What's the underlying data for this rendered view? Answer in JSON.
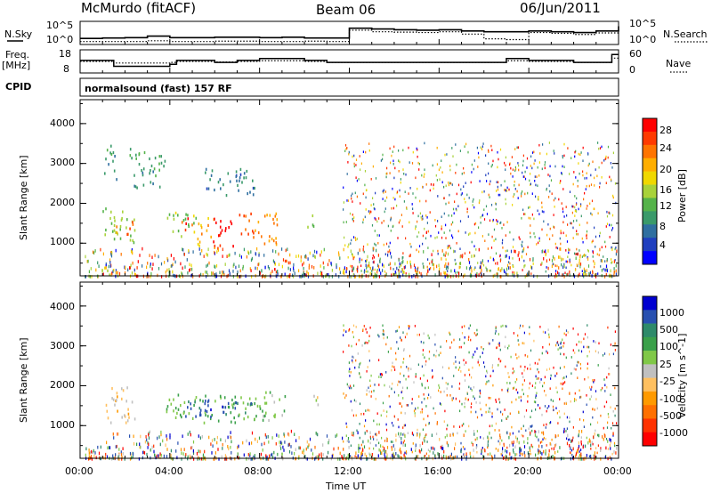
{
  "header": {
    "station": "McMurdo (fitACF)",
    "beam": "Beam 06",
    "date": "06/Jun/2011"
  },
  "noise_panel": {
    "left_label": "N.Sky",
    "left_ticks": [
      "10^5",
      "10^0"
    ],
    "right_label": "N.Search",
    "right_ticks": [
      "10^5",
      "10^0"
    ]
  },
  "freq_panel": {
    "left_label_1": "Freq.",
    "left_label_2": "[MHz]",
    "left_ticks": [
      "18",
      "8"
    ],
    "right_label": "Nave",
    "right_ticks": [
      "60",
      "0"
    ]
  },
  "cpid": {
    "label": "CPID",
    "value": "normalsound (fast) 157 RF"
  },
  "power_panel": {
    "ylabel": "Slant Range [km]",
    "yticks": [
      "4000",
      "3000",
      "2000",
      "1000"
    ],
    "colorbar_label": "Power [dB]",
    "colorbar_ticks": [
      "28",
      "24",
      "20",
      "16",
      "12",
      "8",
      "4"
    ],
    "colors": [
      "#0000ff",
      "#1f3fbf",
      "#2f6fa0",
      "#3a9a6a",
      "#55b34a",
      "#a8d23a",
      "#f0d800",
      "#ffae00",
      "#ff7400",
      "#ff3a00",
      "#ff0000"
    ]
  },
  "velocity_panel": {
    "ylabel": "Slant Range [km]",
    "yticks": [
      "4000",
      "3000",
      "2000",
      "1000"
    ],
    "colorbar_label": "Velocity [m s^-1]",
    "colorbar_ticks": [
      "1000",
      "500",
      "100",
      "25",
      "-25",
      "-100",
      "-500",
      "-1000"
    ],
    "colors": [
      "#ff0000",
      "#ff3200",
      "#ff7000",
      "#ff9a00",
      "#ffc060",
      "#c0c0c0",
      "#80c848",
      "#3aa04a",
      "#2e8a6a",
      "#2850b0",
      "#0000d0"
    ]
  },
  "x_axis": {
    "label": "Time UT",
    "ticks": [
      "00:00",
      "04:00",
      "08:00",
      "12:00",
      "16:00",
      "20:00",
      "00:00"
    ]
  },
  "chart_data": [
    {
      "type": "line",
      "name": "noise",
      "x": [
        0,
        1,
        2,
        3,
        4,
        5,
        6,
        7,
        8,
        9,
        10,
        11,
        12,
        13,
        14,
        15,
        16,
        17,
        18,
        19,
        20,
        21,
        22,
        23,
        24
      ],
      "series": [
        {
          "name": "N.Sky",
          "values": [
            1.1,
            1.2,
            1.3,
            1.7,
            1.3,
            1.3,
            1.4,
            1.4,
            1.3,
            1.4,
            1.2,
            1.2,
            3.7,
            3.5,
            3.3,
            3.2,
            3.3,
            3.0,
            2.8,
            2.8,
            3.0,
            2.8,
            2.6,
            3.0,
            4.2
          ]
        },
        {
          "name": "N.Search",
          "values": [
            0.3,
            0.3,
            0.3,
            0.5,
            0.3,
            0.3,
            0.4,
            0.4,
            0.3,
            0.3,
            0.4,
            0.3,
            3.2,
            2.8,
            2.7,
            2.6,
            2.8,
            2.2,
            1.0,
            0.8,
            2.6,
            2.4,
            2.1,
            2.5,
            3.8
          ]
        }
      ],
      "ylim": [
        0,
        5
      ],
      "yscale": "log10"
    },
    {
      "type": "line",
      "name": "frequency",
      "x": [
        0,
        1,
        1.5,
        3,
        4,
        4.3,
        5,
        6,
        7,
        8,
        9,
        10,
        10.5,
        11,
        12,
        14,
        16,
        18,
        19,
        20,
        21,
        22,
        23,
        23.7,
        24
      ],
      "series": [
        {
          "name": "Freq.",
          "values": [
            13.5,
            13.5,
            10.5,
            10.5,
            11.5,
            13.5,
            13.5,
            12.5,
            13.5,
            14.5,
            14.5,
            13.5,
            13.5,
            12.5,
            12.5,
            12.5,
            12.5,
            12.5,
            14.5,
            13.5,
            13.5,
            12.5,
            12.5,
            16.5,
            16.5
          ]
        },
        {
          "name": "Nave",
          "values": [
            30,
            30,
            25,
            25,
            27,
            30,
            30,
            28,
            30,
            32,
            32,
            30,
            30,
            27,
            27,
            27,
            27,
            27,
            32,
            30,
            30,
            27,
            27,
            40,
            40
          ]
        }
      ],
      "ylim": [
        8,
        18
      ]
    },
    {
      "type": "heatmap",
      "name": "power",
      "xlabel": "Time UT",
      "ylabel": "Slant Range [km]",
      "xlim": [
        0,
        24
      ],
      "ylim": [
        180,
        4600
      ],
      "clim": [
        0,
        30
      ],
      "regions": [
        {
          "t": [
            1.0,
            2.5
          ],
          "r": [
            1000,
            1900
          ],
          "v": 14
        },
        {
          "t": [
            1.6,
            2.4
          ],
          "r": [
            1200,
            1600
          ],
          "v": 24
        },
        {
          "t": [
            3.8,
            5.2
          ],
          "r": [
            1200,
            1800
          ],
          "v": 14
        },
        {
          "t": [
            4.4,
            5.0
          ],
          "r": [
            1300,
            1700
          ],
          "v": 26
        },
        {
          "t": [
            5.2,
            6.0
          ],
          "r": [
            900,
            1700
          ],
          "v": 20
        },
        {
          "t": [
            5.8,
            6.8
          ],
          "r": [
            900,
            1700
          ],
          "v": 28
        },
        {
          "t": [
            7.0,
            7.8
          ],
          "r": [
            1100,
            1800
          ],
          "v": 24
        },
        {
          "t": [
            7.8,
            8.8
          ],
          "r": [
            1000,
            1900
          ],
          "v": 22
        },
        {
          "t": [
            8.6,
            9.2
          ],
          "r": [
            300,
            600
          ],
          "v": 26
        },
        {
          "t": [
            10.1,
            10.6
          ],
          "r": [
            1400,
            1800
          ],
          "v": 14
        },
        {
          "t": [
            0.4,
            1.5
          ],
          "r": [
            200,
            420
          ],
          "v": 16
        },
        {
          "t": [
            2.2,
            3.8
          ],
          "r": [
            2400,
            3400
          ],
          "v": 10
        },
        {
          "t": [
            1.0,
            1.6
          ],
          "r": [
            2600,
            3500
          ],
          "v": 10
        },
        {
          "t": [
            5.5,
            7.8
          ],
          "r": [
            2200,
            2900
          ],
          "v": 8
        }
      ]
    },
    {
      "type": "heatmap",
      "name": "velocity",
      "xlabel": "Time UT",
      "ylabel": "Slant Range [km]",
      "xlim": [
        0,
        24
      ],
      "ylim": [
        180,
        4600
      ],
      "clim": [
        -1000,
        1000
      ],
      "regions": [
        {
          "t": [
            1.1,
            2.5
          ],
          "r": [
            1100,
            2000
          ],
          "v": -150
        },
        {
          "t": [
            0.3,
            1.2
          ],
          "r": [
            200,
            400
          ],
          "v": -200
        },
        {
          "t": [
            3.8,
            8.0
          ],
          "r": [
            1100,
            1800
          ],
          "v": 300
        },
        {
          "t": [
            4.6,
            7.6
          ],
          "r": [
            1200,
            1700
          ],
          "v": 700
        },
        {
          "t": [
            7.8,
            9.2
          ],
          "r": [
            1100,
            1900
          ],
          "v": 200
        },
        {
          "t": [
            8.6,
            9.1
          ],
          "r": [
            300,
            600
          ],
          "v": 60
        },
        {
          "t": [
            10.1,
            10.6
          ],
          "r": [
            1400,
            1800
          ],
          "v": 60
        }
      ]
    }
  ]
}
